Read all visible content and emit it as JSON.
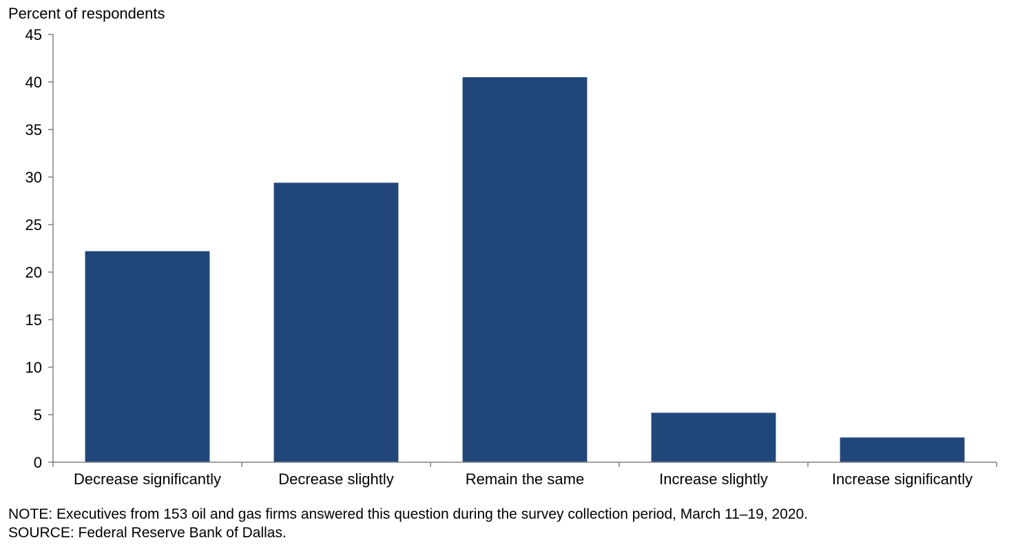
{
  "chart_data": {
    "type": "bar",
    "title": "",
    "xlabel": "",
    "ylabel": "Percent of respondents",
    "categories": [
      "Decrease significantly",
      "Decrease slightly",
      "Remain the same",
      "Increase slightly",
      "Increase significantly"
    ],
    "values": [
      22.2,
      29.4,
      40.5,
      5.2,
      2.6
    ],
    "ylim": [
      0,
      45
    ],
    "yticks": [
      0,
      5,
      10,
      15,
      20,
      25,
      30,
      35,
      40,
      45
    ],
    "grid": false,
    "bar_color": "#21477a",
    "axis_color": "#808080"
  },
  "note": "NOTE: Executives from 153 oil and gas firms answered this question during the survey collection period, March 11–19, 2020.",
  "source": "SOURCE: Federal Reserve Bank of Dallas."
}
